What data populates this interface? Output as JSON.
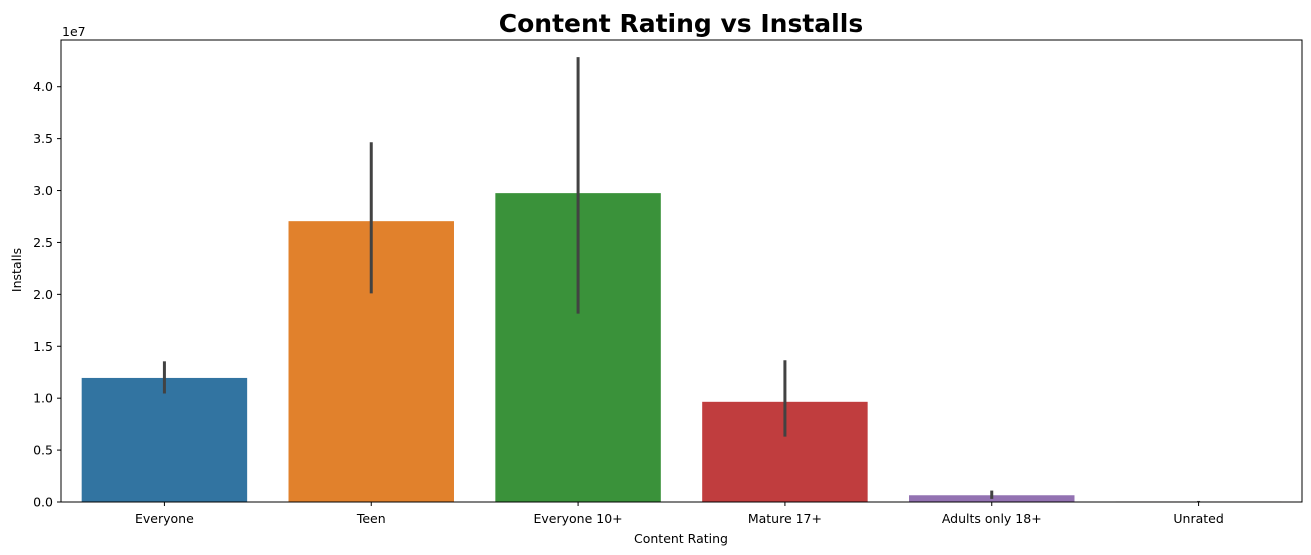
{
  "chart_data": {
    "type": "bar",
    "title": "Content Rating vs Installs",
    "xlabel": "Content Rating",
    "ylabel": "Installs",
    "y_scale_note": "1e7",
    "categories": [
      "Everyone",
      "Teen",
      "Everyone 10+",
      "Mature 17+",
      "Adults only 18+",
      "Unrated"
    ],
    "values": [
      11950000,
      27050000,
      29750000,
      9650000,
      650000,
      50000
    ],
    "error_bars": [
      [
        10450000,
        13550000
      ],
      [
        20100000,
        34650000
      ],
      [
        18150000,
        42850000
      ],
      [
        6300000,
        13650000
      ],
      [
        300000,
        1100000
      ],
      [
        0,
        100000
      ]
    ],
    "ylim": [
      0,
      44500000
    ],
    "yticks": [
      0,
      5000000,
      10000000,
      15000000,
      20000000,
      25000000,
      30000000,
      35000000,
      40000000
    ],
    "ytick_labels": [
      "0.0",
      "0.5",
      "1.0",
      "1.5",
      "2.0",
      "2.5",
      "3.0",
      "3.5",
      "4.0"
    ],
    "colors": [
      "#3274a1",
      "#e1812c",
      "#3a923a",
      "#c03d3e",
      "#9372b2",
      "#845b53"
    ],
    "errorbar_color": "#424242",
    "grid": false,
    "legend": "none"
  }
}
